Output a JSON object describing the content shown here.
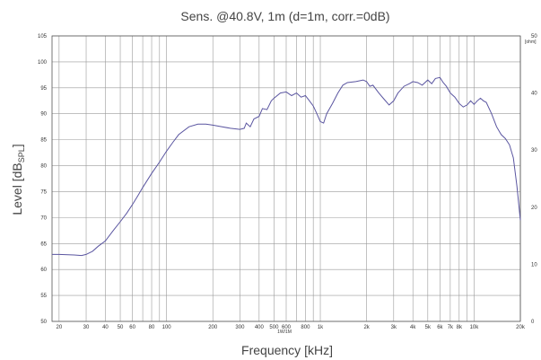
{
  "chart_data": {
    "type": "line",
    "title": "Sens. @40.8V, 1m (d=1m, corr.=0dB)",
    "xlabel": "Frequency [kHz]",
    "ylabel_main": "Level [dB",
    "ylabel_sub": "SPL",
    "ylabel_close": "]",
    "x_scale": "log",
    "xlim": [
      18,
      20000
    ],
    "ylim": [
      50,
      105
    ],
    "y2lim": [
      0,
      50
    ],
    "y2_unit": "[ohm]",
    "grid": true,
    "x_tick_labels": [
      "20",
      "30",
      "40",
      "50",
      "60",
      "80",
      "100",
      "200",
      "300",
      "400",
      "500",
      "600",
      "800",
      "1k",
      "2k",
      "3k",
      "4k",
      "5k",
      "6k",
      "7k",
      "8k",
      "10k",
      "20k"
    ],
    "x_tick_values": [
      20,
      30,
      40,
      50,
      60,
      80,
      100,
      200,
      300,
      400,
      500,
      600,
      800,
      1000,
      2000,
      3000,
      4000,
      5000,
      6000,
      7000,
      8000,
      10000,
      20000
    ],
    "x_extra_label": "1W/1M",
    "y_ticks": [
      105,
      100,
      95,
      90,
      85,
      80,
      75,
      70,
      65,
      60,
      55,
      50
    ],
    "y2_ticks": [
      50,
      40,
      30,
      20,
      10,
      0
    ],
    "colors": {
      "line": "#5a55a0",
      "grid": "#9a9a9a",
      "frame": "#555555"
    },
    "series": [
      {
        "x": [
          18,
          20,
          25,
          28,
          30,
          33,
          36,
          40,
          45,
          50,
          55,
          60,
          65,
          70,
          80,
          90,
          100,
          110,
          120,
          140,
          160,
          180,
          200,
          230,
          260,
          300,
          320,
          330,
          350,
          370,
          400,
          420,
          450,
          480,
          500,
          550,
          600,
          650,
          700,
          750,
          800,
          850,
          900,
          950,
          1000,
          1050,
          1100,
          1200,
          1300,
          1400,
          1500,
          1700,
          1900,
          2000,
          2100,
          2200,
          2400,
          2600,
          2800,
          3000,
          3200,
          3500,
          3800,
          4000,
          4300,
          4600,
          5000,
          5300,
          5600,
          6000,
          6300,
          6600,
          7000,
          7500,
          8000,
          8500,
          9000,
          9500,
          10000,
          10500,
          11000,
          11500,
          12000,
          13000,
          14000,
          15000,
          16000,
          17000,
          18000,
          19000,
          20000
        ],
        "values": [
          62.9,
          62.9,
          62.8,
          62.7,
          62.9,
          63.5,
          64.5,
          65.5,
          67.5,
          69.2,
          70.8,
          72.5,
          74.2,
          75.8,
          78.5,
          80.7,
          82.8,
          84.5,
          86,
          87.5,
          88,
          88,
          87.8,
          87.5,
          87.2,
          87,
          87.2,
          88.2,
          87.5,
          89,
          89.5,
          91,
          90.8,
          92.5,
          93,
          94,
          94.2,
          93.5,
          94,
          93.2,
          93.5,
          92.5,
          91.5,
          90,
          88.5,
          88.2,
          90,
          92,
          94,
          95.5,
          96,
          96.2,
          96.5,
          96.2,
          95.3,
          95.5,
          94,
          92.8,
          91.7,
          92.5,
          94,
          95.3,
          95.8,
          96.2,
          96,
          95.5,
          96.5,
          95.8,
          96.8,
          97,
          96,
          95.3,
          94,
          93.2,
          92,
          91.3,
          91.7,
          92.5,
          91.8,
          92.5,
          93,
          92.5,
          92.2,
          90,
          87.5,
          86,
          85.2,
          84,
          81.5,
          76,
          69.5
        ]
      }
    ]
  }
}
